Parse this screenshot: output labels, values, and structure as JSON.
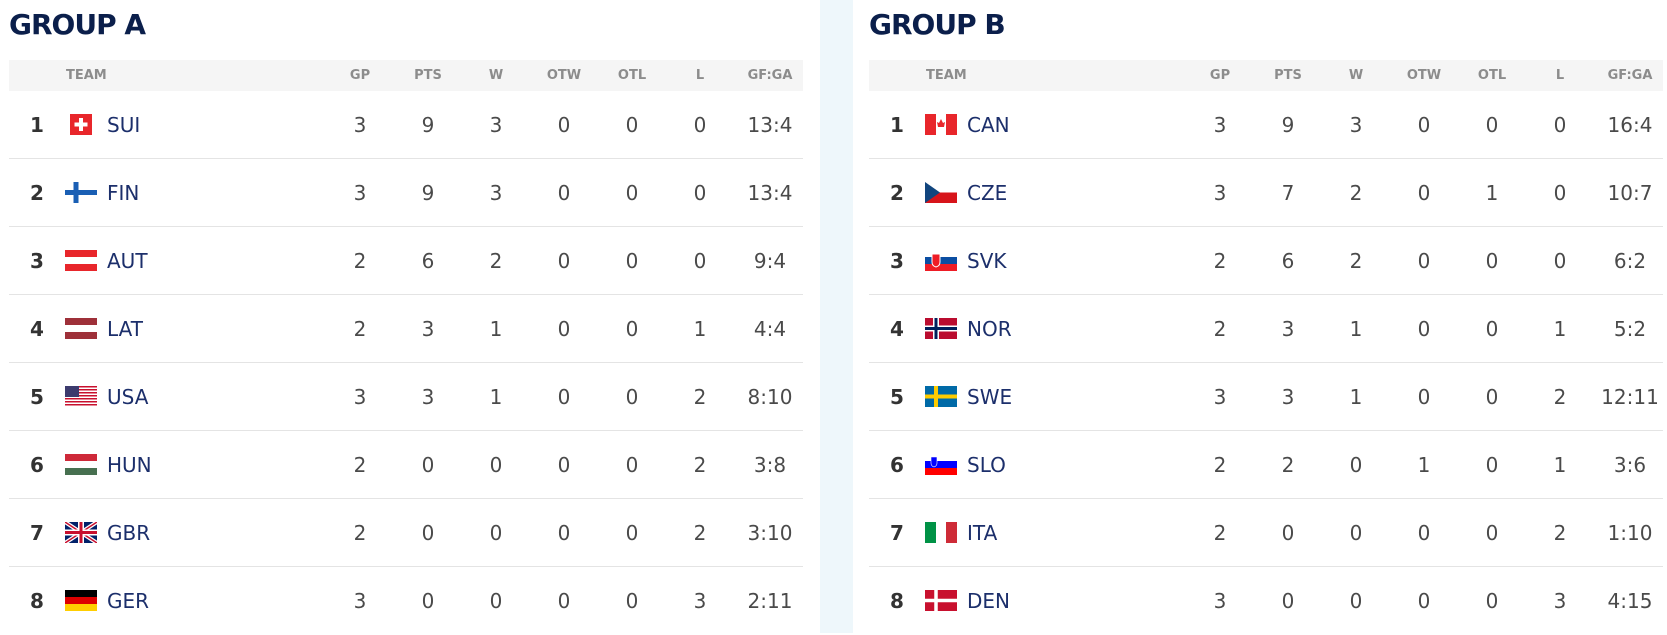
{
  "groups": [
    {
      "title": "GROUP A",
      "columns": [
        "TEAM",
        "GP",
        "PTS",
        "W",
        "OTW",
        "OTL",
        "L",
        "GF:GA"
      ],
      "rows": [
        {
          "rank": 1,
          "team": "SUI",
          "gp": 3,
          "pts": 9,
          "w": 3,
          "otw": 0,
          "otl": 0,
          "l": 0,
          "gf_ga": "13:4"
        },
        {
          "rank": 2,
          "team": "FIN",
          "gp": 3,
          "pts": 9,
          "w": 3,
          "otw": 0,
          "otl": 0,
          "l": 0,
          "gf_ga": "13:4"
        },
        {
          "rank": 3,
          "team": "AUT",
          "gp": 2,
          "pts": 6,
          "w": 2,
          "otw": 0,
          "otl": 0,
          "l": 0,
          "gf_ga": "9:4"
        },
        {
          "rank": 4,
          "team": "LAT",
          "gp": 2,
          "pts": 3,
          "w": 1,
          "otw": 0,
          "otl": 0,
          "l": 1,
          "gf_ga": "4:4"
        },
        {
          "rank": 5,
          "team": "USA",
          "gp": 3,
          "pts": 3,
          "w": 1,
          "otw": 0,
          "otl": 0,
          "l": 2,
          "gf_ga": "8:10"
        },
        {
          "rank": 6,
          "team": "HUN",
          "gp": 2,
          "pts": 0,
          "w": 0,
          "otw": 0,
          "otl": 0,
          "l": 2,
          "gf_ga": "3:8"
        },
        {
          "rank": 7,
          "team": "GBR",
          "gp": 2,
          "pts": 0,
          "w": 0,
          "otw": 0,
          "otl": 0,
          "l": 2,
          "gf_ga": "3:10"
        },
        {
          "rank": 8,
          "team": "GER",
          "gp": 3,
          "pts": 0,
          "w": 0,
          "otw": 0,
          "otl": 0,
          "l": 3,
          "gf_ga": "2:11"
        }
      ]
    },
    {
      "title": "GROUP B",
      "columns": [
        "TEAM",
        "GP",
        "PTS",
        "W",
        "OTW",
        "OTL",
        "L",
        "GF:GA"
      ],
      "rows": [
        {
          "rank": 1,
          "team": "CAN",
          "gp": 3,
          "pts": 9,
          "w": 3,
          "otw": 0,
          "otl": 0,
          "l": 0,
          "gf_ga": "16:4"
        },
        {
          "rank": 2,
          "team": "CZE",
          "gp": 3,
          "pts": 7,
          "w": 2,
          "otw": 0,
          "otl": 1,
          "l": 0,
          "gf_ga": "10:7"
        },
        {
          "rank": 3,
          "team": "SVK",
          "gp": 2,
          "pts": 6,
          "w": 2,
          "otw": 0,
          "otl": 0,
          "l": 0,
          "gf_ga": "6:2"
        },
        {
          "rank": 4,
          "team": "NOR",
          "gp": 2,
          "pts": 3,
          "w": 1,
          "otw": 0,
          "otl": 0,
          "l": 1,
          "gf_ga": "5:2"
        },
        {
          "rank": 5,
          "team": "SWE",
          "gp": 3,
          "pts": 3,
          "w": 1,
          "otw": 0,
          "otl": 0,
          "l": 2,
          "gf_ga": "12:11"
        },
        {
          "rank": 6,
          "team": "SLO",
          "gp": 2,
          "pts": 2,
          "w": 0,
          "otw": 1,
          "otl": 0,
          "l": 1,
          "gf_ga": "3:6"
        },
        {
          "rank": 7,
          "team": "ITA",
          "gp": 2,
          "pts": 0,
          "w": 0,
          "otw": 0,
          "otl": 0,
          "l": 2,
          "gf_ga": "1:10"
        },
        {
          "rank": 8,
          "team": "DEN",
          "gp": 3,
          "pts": 0,
          "w": 0,
          "otw": 0,
          "otl": 0,
          "l": 3,
          "gf_ga": "4:15"
        }
      ]
    }
  ]
}
